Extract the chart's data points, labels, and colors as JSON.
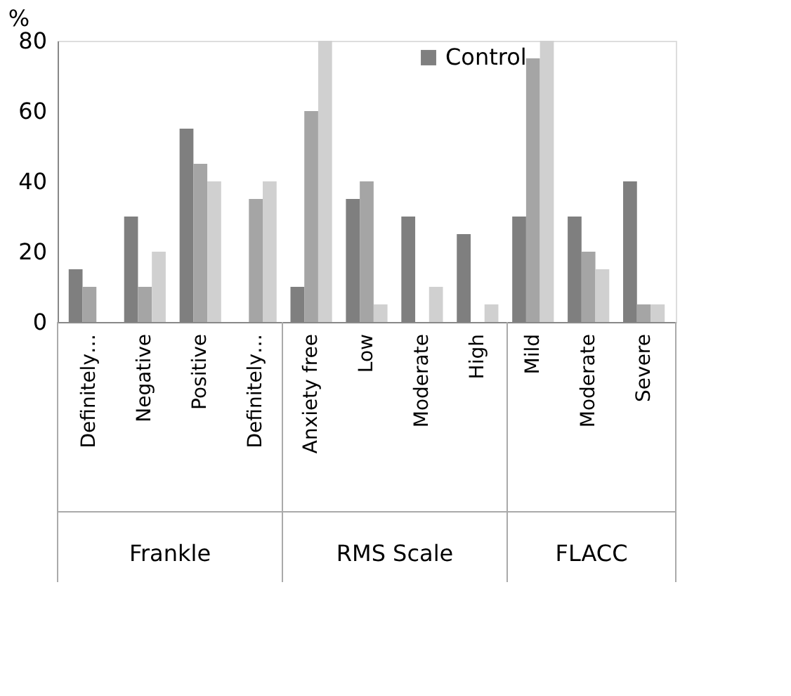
{
  "chart_data": {
    "type": "bar",
    "ylabel": "%",
    "categories": [
      "Definitely…",
      "Negative",
      "Positive",
      "Definitely…",
      "Anxiety free",
      "Low",
      "Moderate",
      "High",
      "Mild",
      "Moderate",
      "Severe"
    ],
    "series": [
      {
        "name": "Control",
        "color": "#7f7f7f",
        "values": [
          15,
          30,
          55,
          0,
          10,
          35,
          30,
          25,
          30,
          30,
          40
        ]
      },
      {
        "color": "#a5a5a5",
        "values": [
          10,
          10,
          45,
          35,
          60,
          40,
          0,
          0,
          75,
          20,
          5
        ]
      },
      {
        "color": "#d0d0d0",
        "values": [
          0,
          20,
          40,
          40,
          80,
          5,
          10,
          5,
          80,
          15,
          5
        ]
      }
    ],
    "ylim": [
      0,
      80
    ],
    "yticks": [
      0,
      20,
      40,
      60,
      80
    ],
    "grid": false,
    "legend": "top right",
    "annotations": [
      "Frankle",
      "RMS Scale",
      "FLACC"
    ]
  }
}
